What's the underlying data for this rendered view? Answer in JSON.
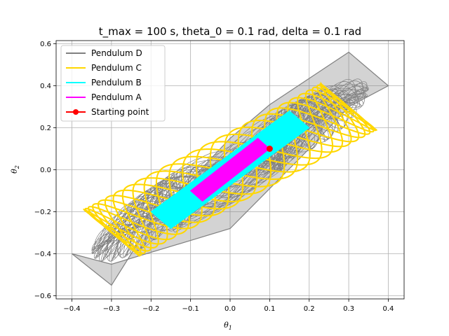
{
  "chart_data": {
    "type": "line",
    "title": "t_max = 100 s, theta_0 = 0.1 rad, delta = 0.1 rad",
    "xlabel": "θ",
    "xlabel_sub": "1",
    "ylabel": "θ",
    "ylabel_sub": "2",
    "xlim": [
      -0.44,
      0.44
    ],
    "ylim": [
      -0.615,
      0.615
    ],
    "xticks": [
      -0.4,
      -0.3,
      -0.2,
      -0.1,
      0.0,
      0.1,
      0.2,
      0.3,
      0.4
    ],
    "xtick_labels": [
      "−0.4",
      "−0.3",
      "−0.2",
      "−0.1",
      "0.0",
      "0.1",
      "0.2",
      "0.3",
      "0.4"
    ],
    "yticks": [
      -0.6,
      -0.4,
      -0.2,
      0.0,
      0.2,
      0.4,
      0.6
    ],
    "ytick_labels": [
      "−0.6",
      "−0.4",
      "−0.2",
      "0.0",
      "0.2",
      "0.4",
      "0.6"
    ],
    "grid": true,
    "legend_position": "top-left",
    "series": [
      {
        "name": "Pendulum D",
        "color": "#808080",
        "envelope": [
          [
            -0.4,
            -0.4
          ],
          [
            -0.3,
            -0.45
          ],
          [
            0.0,
            -0.28
          ],
          [
            0.2,
            0.1
          ],
          [
            0.3,
            0.3
          ],
          [
            0.4,
            0.4
          ],
          [
            0.3,
            0.56
          ],
          [
            0.1,
            0.31
          ],
          [
            0.0,
            0.15
          ],
          [
            -0.2,
            -0.25
          ],
          [
            -0.3,
            -0.55
          ],
          [
            -0.4,
            -0.4
          ]
        ]
      },
      {
        "name": "Pendulum C",
        "color": "#ffd700",
        "center": [
          0.0,
          0.0
        ],
        "x_amp": [
          0.3,
          0.07
        ],
        "y_amp": [
          0.3,
          0.11
        ]
      },
      {
        "name": "Pendulum B",
        "color": "#00ffff",
        "polygon": [
          [
            -0.2,
            -0.2
          ],
          [
            0.15,
            0.28
          ],
          [
            0.2,
            0.2
          ],
          [
            -0.15,
            -0.28
          ]
        ]
      },
      {
        "name": "Pendulum A",
        "color": "#ff00ff",
        "polygon": [
          [
            -0.1,
            -0.1
          ],
          [
            0.07,
            0.15
          ],
          [
            0.1,
            0.1
          ],
          [
            -0.07,
            -0.15
          ]
        ]
      },
      {
        "name": "Starting point",
        "color": "#ff0000",
        "points": [
          [
            0.1,
            0.1
          ]
        ]
      }
    ]
  }
}
